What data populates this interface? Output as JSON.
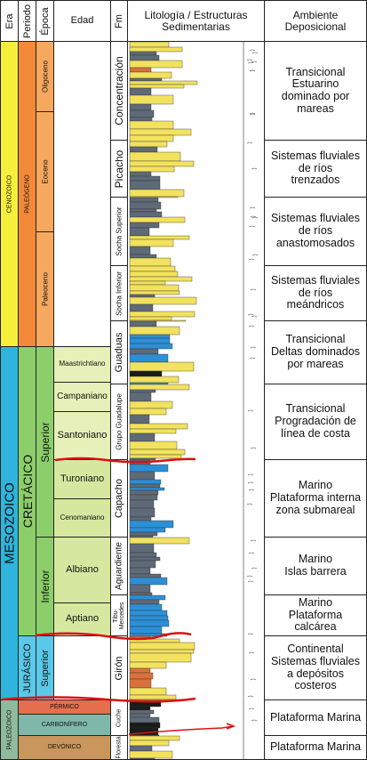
{
  "headers": {
    "era": "Era",
    "periodo": "Periodo",
    "epoca": "Época",
    "edad": "Edad",
    "fm": "Fm",
    "litologia": "Litología / Estructuras\nSedimentarias",
    "ambiente": "Ambiente\nDeposicional"
  },
  "eras": [
    "CENOZOICO",
    "MESOZOICO",
    "PALEOZOICO"
  ],
  "periods": [
    "PALEÓGENO",
    "CRETÁCICO",
    "JURÁSICO",
    "PÉRMICO",
    "CARBONÍFERO",
    "DEVÓNICO"
  ],
  "epochs": [
    "Oligoceno",
    "Eoceno",
    "Paleoceno",
    "Superior",
    "Inferior",
    "Superior"
  ],
  "ages": [
    "Maastrichtiano",
    "Campaniano",
    "Santoniano",
    "Turoniano",
    "Cenomaniano",
    "Albiano",
    "Aptiano"
  ],
  "formations": [
    "Concentración",
    "Picacho",
    "Socha Superior",
    "Socha Inferior",
    "Guaduas",
    "Grupo Guadalupe",
    "Capacho",
    "Aguardiente",
    "Tibu-\nMercedes",
    "Girón",
    "Cuche",
    "Floresta"
  ],
  "environments": [
    "Transicional\nEstuarino\ndominado por\nmareas",
    "Sistemas fluviales\nde ríos\ntrenzados",
    "Sistemas fluviales\nde ríos\nanastomosados",
    "Sistemas fluviales\nde ríos\nmeándricos",
    "Transicional\nDeltas dominados\npor mareas",
    "Transicional\nProgradación de\nlínea de costa",
    "Marino\nPlataforma interna\nzona submareal",
    "Marino\nIslas barrera",
    "Marino\nPlataforma\ncalcárea",
    "Continental\nSistemas fluviales\na depósitos\ncosteros",
    "Plataforma Marina",
    "Plataforma Marina"
  ],
  "colors": {
    "cenozoico": "#f5ef3c",
    "mesozoico": "#2fb5dc",
    "paleozoico": "#8fba9c",
    "paleogeno": "#f28a3a",
    "paleogeno_epoch": "#f6a85e",
    "cretacico": "#8ccf6a",
    "cretacico_age": "#d6e8a0",
    "cretacico_age2": "#e6f0b8",
    "jurasico": "#5ac8e8",
    "permico": "#e46f4e",
    "carbonifero": "#7fb8aa",
    "devonico": "#c9965c",
    "sandstone": "#f2e25e",
    "shale": "#5e6a78",
    "limestone": "#2d8fd6",
    "coal": "#1a1a1a",
    "redbed": "#d9713a",
    "unconformity": "#dd1111"
  }
}
